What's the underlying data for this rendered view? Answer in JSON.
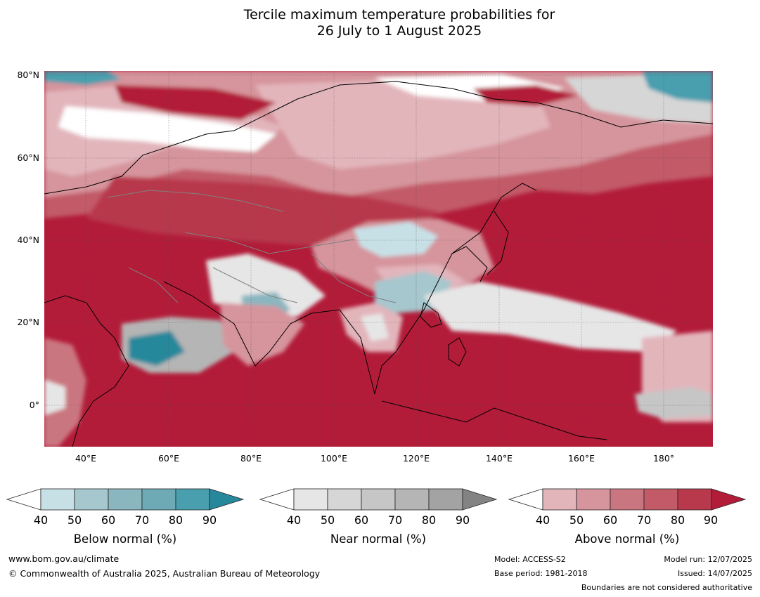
{
  "title": {
    "line1": "Tercile maximum temperature probabilities for",
    "line2": "26 July to 1 August 2025"
  },
  "map": {
    "lat_ticks": [
      "80°N",
      "60°N",
      "40°N",
      "20°N",
      "0°"
    ],
    "lon_ticks": [
      "40°E",
      "60°E",
      "80°E",
      "100°E",
      "120°E",
      "140°E",
      "160°E",
      "180°"
    ],
    "extent": {
      "lon_min": 30,
      "lon_max": 192,
      "lat_min": -10,
      "lat_max": 81
    }
  },
  "legends": [
    {
      "name": "Below normal (%)",
      "ticks": [
        "40",
        "50",
        "60",
        "70",
        "80",
        "90"
      ],
      "colors": [
        "#ffffff",
        "#c7e0e6",
        "#a5c7cd",
        "#8ab6bf",
        "#6eaab6",
        "#4a9fae",
        "#27889b"
      ]
    },
    {
      "name": "Near normal (%)",
      "ticks": [
        "40",
        "50",
        "60",
        "70",
        "80",
        "90"
      ],
      "colors": [
        "#ffffff",
        "#e6e6e6",
        "#d6d6d6",
        "#c6c6c6",
        "#b5b5b5",
        "#a3a3a3",
        "#838383"
      ]
    },
    {
      "name": "Above normal (%)",
      "ticks": [
        "40",
        "50",
        "60",
        "70",
        "80",
        "90"
      ],
      "colors": [
        "#ffffff",
        "#e2b5bb",
        "#d6949c",
        "#ca7680",
        "#c25a68",
        "#b8384c",
        "#b21c39"
      ]
    }
  ],
  "footer": {
    "website": "www.bom.gov.au/climate",
    "copyright": "© Commonwealth of Australia 2025, Australian Bureau of Meteorology",
    "model": "Model: ACCESS-S2",
    "base_period": "Base period: 1981-2018",
    "model_run": "Model run: 12/07/2025",
    "issued": "Issued: 14/07/2025",
    "disclaimer": "Boundaries are not considered authoritative"
  }
}
